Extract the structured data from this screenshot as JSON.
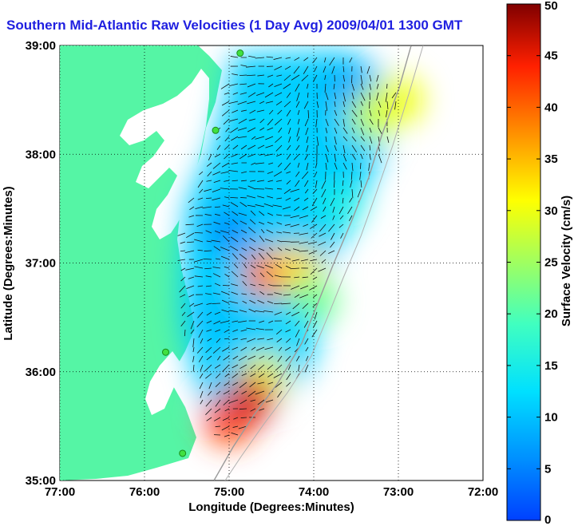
{
  "title": "Southern Mid-Atlantic Raw Velocities (1 Day Avg) 2009/04/01 1300 GMT",
  "map": {
    "x_axis": {
      "label": "Longitude (Degrees:Minutes)",
      "ticks": [
        "77:00",
        "76:00",
        "75:00",
        "74:00",
        "73:00",
        "72:00"
      ],
      "range": [
        -77,
        -72
      ]
    },
    "y_axis": {
      "label": "Latitude (Degrees:Minutes)",
      "ticks": [
        "35:00",
        "36:00",
        "37:00",
        "38:00",
        "39:00"
      ],
      "range": [
        35,
        39
      ]
    },
    "grid": "dotted",
    "land_color": "#55f5a5",
    "water_color": "#ffffff",
    "sites": [
      {
        "lon": -74.87,
        "lat": 38.93
      },
      {
        "lon": -75.16,
        "lat": 38.22
      },
      {
        "lon": -75.75,
        "lat": 36.18
      },
      {
        "lon": -75.55,
        "lat": 35.25
      }
    ]
  },
  "colorbar": {
    "label": "Surface Velocity (cm/s)",
    "ticks": [
      "0",
      "5",
      "10",
      "15",
      "20",
      "25",
      "30",
      "35",
      "40",
      "45",
      "50"
    ],
    "range": [
      0,
      50
    ],
    "colormap": "jet"
  },
  "chart_data": {
    "type": "heatmap",
    "title": "Southern Mid-Atlantic Raw Velocities (1 Day Avg) 2009/04/01 1300 GMT",
    "xlabel": "Longitude (Degrees:Minutes)",
    "ylabel": "Latitude (Degrees:Minutes)",
    "xlim": [
      -77,
      -72
    ],
    "ylim": [
      35,
      39
    ],
    "value_label": "Surface Velocity (cm/s)",
    "value_range": [
      0,
      50
    ],
    "blobs": [
      {
        "lon": -74.5,
        "lat": 38.2,
        "value": 12
      },
      {
        "lon": -73.6,
        "lat": 38.6,
        "value": 8
      },
      {
        "lon": -73.3,
        "lat": 38.35,
        "value": 27
      },
      {
        "lon": -73.0,
        "lat": 38.5,
        "value": 30
      },
      {
        "lon": -73.7,
        "lat": 37.55,
        "value": 15
      },
      {
        "lon": -75.0,
        "lat": 37.3,
        "value": 6
      },
      {
        "lon": -75.2,
        "lat": 36.5,
        "value": 10
      },
      {
        "lon": -74.55,
        "lat": 36.9,
        "value": 40
      },
      {
        "lon": -74.2,
        "lat": 36.95,
        "value": 33
      },
      {
        "lon": -74.0,
        "lat": 36.65,
        "value": 22
      },
      {
        "lon": -74.6,
        "lat": 35.95,
        "value": 30
      },
      {
        "lon": -75.0,
        "lat": 35.55,
        "value": 42
      },
      {
        "lon": -74.75,
        "lat": 35.75,
        "value": 46
      },
      {
        "lon": -74.25,
        "lat": 36.35,
        "value": 12
      },
      {
        "lon": -74.55,
        "lat": 37.75,
        "value": 11
      }
    ]
  }
}
